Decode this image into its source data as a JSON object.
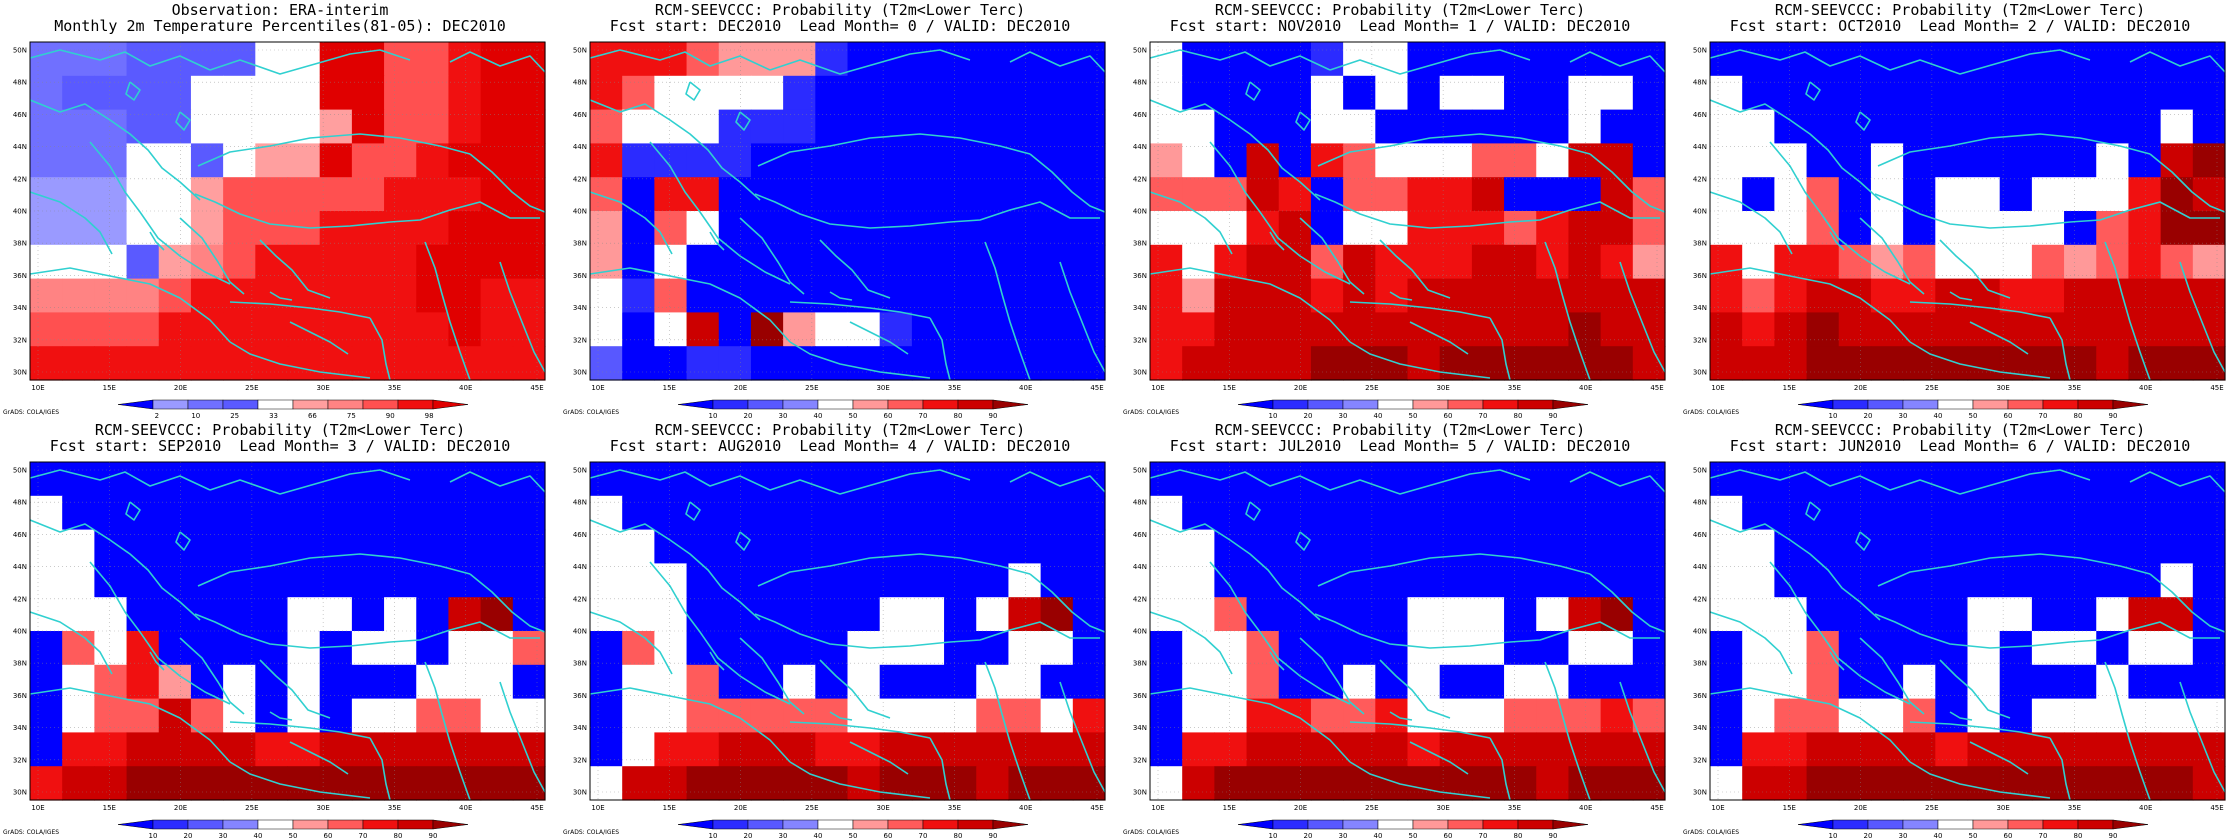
{
  "figure": {
    "grid_lat_labels": [
      "50N",
      "48N",
      "46N",
      "44N",
      "42N",
      "40N",
      "38N",
      "36N",
      "34N",
      "32N",
      "30N"
    ],
    "grid_lon_labels": [
      "10E",
      "15E",
      "20E",
      "25E",
      "30E",
      "35E",
      "40E",
      "45E"
    ],
    "colors": {
      "land_sea_outline": "#30d0d0",
      "deep_blue": "#0000ff",
      "deep_red": "#990000",
      "neutral": "#ffffff"
    },
    "credit": "GrADS: COLA/IGES"
  },
  "panels": [
    {
      "id": "observation",
      "title_line1": "Observation: ERA-interim",
      "title_line2": "Monthly 2m Temperature Percentiles(81-05): DEC2010",
      "colorbar": [
        "2",
        "10",
        "25",
        "33",
        "66",
        "75",
        "90",
        "98"
      ],
      "grid": [
        "2 2 2 3 3 3 3 4 4 9 9 7 7 8 9 9",
        "2 3 3 3 3 4 4 4 4 9 9 7 7 8 9 9",
        "2 2 2 3 3 4 4 4 4 5 9 7 7 8 9 9",
        "2 2 2 4 4 3 4 5 5 9 7 7 8 9 9 9",
        "1 1 1 4 4 5 7 7 7 7 7 8 8 8 9 9",
        "1 1 1 4 4 5 7 7 7 8 8 8 8 9 9 9",
        "4 4 4 3 5 6 7 8 8 8 8 8 9 9 9 9",
        "6 6 6 6 7 8 8 8 8 8 8 8 9 9 8 8",
        "7 7 7 7 8 8 8 8 8 8 8 8 8 9 8 8",
        "8 8 8 8 8 8 8 8 8 8 8 8 8 8 8 8"
      ]
    },
    {
      "id": "lead0",
      "title_line1": "RCM-SEEVCCC: Probability (T2m<Lower Terc)",
      "title_line2": "Fcst start: DEC2010  Lead Month= 0 / VALID: DEC2010",
      "colorbar": [
        "10",
        "20",
        "30",
        "40",
        "50",
        "60",
        "70",
        "80",
        "90"
      ],
      "grid": [
        "7 7 7 6 5 5 5 1 0 0 0 0 0 0 0 0",
        "7 6 4 4 4 4 1 0 0 0 0 0 0 0 0 0",
        "6 4 4 4 1 1 1 0 0 0 0 0 0 0 0 0",
        "7 1 1 1 1 0 0 0 0 0 0 0 0 0 0 0",
        "6 0 7 7 0 0 0 0 0 0 0 0 0 0 0 0",
        "5 0 6 4 0 0 0 0 0 0 0 0 0 0 0 0",
        "5 0 4 0 0 0 0 0 0 0 0 0 0 0 0 0",
        "4 1 6 0 0 0 0 0 0 0 0 0 0 0 0 0",
        "4 0 4 8 0 9 5 4 4 1 0 0 0 0 0 0",
        "2 0 0 1 1 0 0 0 0 0 0 0 0 0 0 0"
      ]
    },
    {
      "id": "lead1",
      "title_line1": "RCM-SEEVCCC: Probability (T2m<Lower Terc)",
      "title_line2": "Fcst start: NOV2010  Lead Month= 1 / VALID: DEC2010",
      "colorbar": [
        "10",
        "20",
        "30",
        "40",
        "50",
        "60",
        "70",
        "80",
        "90"
      ],
      "grid": [
        "4 0 0 0 0 1 4 4 0 0 0 0 0 0 0 0",
        "4 0 0 0 0 4 0 4 0 4 4 0 0 4 4 0",
        "4 4 0 0 0 4 4 0 0 0 0 0 0 4 0 0",
        "5 4 0 8 0 7 6 4 4 4 6 6 4 8 8 0",
        "6 6 6 8 7 0 6 6 7 7 8 0 0 0 8 6",
        "4 4 4 7 8 0 4 4 7 7 7 6 7 8 8 6",
        "7 4 7 8 8 6 8 7 7 7 8 8 7 8 7 5",
        "7 5 8 8 8 7 8 7 8 8 8 8 8 8 8 8",
        "7 7 8 8 8 8 8 8 8 8 8 8 8 9 8 8",
        "7 8 8 8 8 9 9 9 8 9 9 9 9 9 9 8"
      ]
    },
    {
      "id": "lead2",
      "title_line1": "RCM-SEEVCCC: Probability (T2m<Lower Terc)",
      "title_line2": "Fcst start: OCT2010  Lead Month= 2 / VALID: DEC2010",
      "colorbar": [
        "10",
        "20",
        "30",
        "40",
        "50",
        "60",
        "70",
        "80",
        "90"
      ],
      "grid": [
        "0 0 0 0 0 0 0 0 0 0 0 0 0 0 0 0",
        "4 0 0 0 0 0 0 0 0 0 0 0 0 0 0 0",
        "4 4 0 0 0 0 0 0 0 0 0 0 0 0 4 0",
        "4 4 4 0 0 4 0 0 0 0 0 0 4 0 8 9",
        "4 0 4 6 0 4 0 4 4 0 4 4 4 7 9 8",
        "4 4 4 6 0 4 0 4 4 4 4 0 6 7 9 9",
        "7 4 7 7 6 5 6 4 4 4 6 5 6 7 6 5",
        "7 6 7 8 8 7 7 8 8 7 7 8 8 8 8 8",
        "8 7 8 9 8 8 8 8 8 8 8 8 8 8 8 8",
        "8 8 8 9 9 9 9 9 9 9 9 9 8 9 9 9"
      ]
    },
    {
      "id": "lead3",
      "title_line1": "RCM-SEEVCCC: Probability (T2m<Lower Terc)",
      "title_line2": "Fcst start: SEP2010  Lead Month= 3 / VALID: DEC2010",
      "colorbar": [
        "10",
        "20",
        "30",
        "40",
        "50",
        "60",
        "70",
        "80",
        "90"
      ],
      "grid": [
        "0 0 0 0 0 0 0 0 0 0 0 0 0 0 0 0",
        "4 0 0 0 0 0 0 0 0 0 0 0 0 0 0 0",
        "4 4 0 0 0 0 0 0 0 0 0 0 0 0 0 0",
        "4 4 0 0 0 0 0 0 0 0 0 0 0 0 0 0",
        "4 4 4 0 0 0 0 0 4 4 0 4 0 8 9 0",
        "0 6 4 7 0 0 0 0 4 0 4 4 0 4 4 6",
        "0 4 6 7 5 0 4 0 4 0 0 0 4 4 4 0",
        "0 4 6 6 8 6 4 0 4 0 4 4 6 6 4 4",
        "0 7 7 8 8 8 8 7 7 8 8 8 8 8 8 8",
        "7 8 8 9 9 9 9 9 9 9 9 9 9 9 9 9"
      ]
    },
    {
      "id": "lead4",
      "title_line1": "RCM-SEEVCCC: Probability (T2m<Lower Terc)",
      "title_line2": "Fcst start: AUG2010  Lead Month= 4 / VALID: DEC2010",
      "colorbar": [
        "10",
        "20",
        "30",
        "40",
        "50",
        "60",
        "70",
        "80",
        "90"
      ],
      "grid": [
        "0 0 0 0 0 0 0 0 0 0 0 0 0 0 0 0",
        "4 0 0 0 0 0 0 0 0 0 0 0 0 0 0 0",
        "4 4 0 0 0 0 0 0 0 0 0 0 0 0 0 0",
        "4 4 4 0 0 0 0 0 0 0 0 0 0 4 0 0",
        "4 4 4 0 0 0 0 0 0 4 4 0 4 8 9 0",
        "0 6 4 0 0 0 0 0 4 4 4 0 0 4 4 0",
        "0 4 4 6 0 0 4 0 4 0 0 0 4 4 0 0",
        "0 4 4 6 6 6 6 6 4 4 4 4 6 6 4 7",
        "0 4 7 7 8 8 8 7 7 8 8 8 8 8 8 8",
        "4 8 8 9 9 9 9 9 8 9 9 9 8 9 9 9"
      ]
    },
    {
      "id": "lead5",
      "title_line1": "RCM-SEEVCCC: Probability (T2m<Lower Terc)",
      "title_line2": "Fcst start: JUL2010  Lead Month= 5 / VALID: DEC2010",
      "colorbar": [
        "10",
        "20",
        "30",
        "40",
        "50",
        "60",
        "70",
        "80",
        "90"
      ],
      "grid": [
        "0 0 0 0 0 0 0 0 0 0 0 0 0 0 0 0",
        "4 0 0 0 0 0 0 0 0 0 0 0 0 0 0 0",
        "4 4 0 0 0 0 0 0 0 0 0 0 0 0 0 0",
        "4 4 0 0 0 0 0 0 0 0 0 0 0 0 0 0",
        "4 4 6 0 0 0 0 0 4 4 4 0 4 8 9 0",
        "0 4 4 6 0 0 0 0 4 4 4 0 0 4 4 0",
        "0 4 4 6 0 0 4 0 4 0 0 4 4 0 0 0",
        "0 4 4 7 7 6 6 7 4 4 4 6 6 6 7 6",
        "0 7 7 8 8 8 8 8 7 8 8 8 8 8 8 8",
        "4 8 9 9 9 9 9 9 9 9 9 9 8 9 9 9"
      ]
    },
    {
      "id": "lead6",
      "title_line1": "RCM-SEEVCCC: Probability (T2m<Lower Terc)",
      "title_line2": "Fcst start: JUN2010  Lead Month= 6 / VALID: DEC2010",
      "colorbar": [
        "10",
        "20",
        "30",
        "40",
        "50",
        "60",
        "70",
        "80",
        "90"
      ],
      "grid": [
        "0 0 0 0 0 0 0 0 0 0 0 0 0 0 0 0",
        "4 0 0 0 0 0 0 0 0 0 0 0 0 0 0 0",
        "4 4 0 0 0 0 0 0 0 0 0 0 0 0 0 0",
        "4 4 0 0 0 0 0 0 0 0 0 0 0 0 4 0",
        "4 4 4 0 0 0 0 0 4 4 0 0 4 8 8 0",
        "0 4 4 6 0 0 0 0 4 0 4 4 0 4 4 0",
        "0 4 4 6 0 0 4 0 4 0 0 0 4 0 0 0",
        "0 4 6 6 4 4 6 0 4 0 4 4 4 4 4 4",
        "0 7 7 8 8 8 8 7 8 8 8 8 8 8 8 8",
        "4 8 8 9 9 9 9 9 9 9 9 9 9 9 9 8"
      ]
    }
  ]
}
